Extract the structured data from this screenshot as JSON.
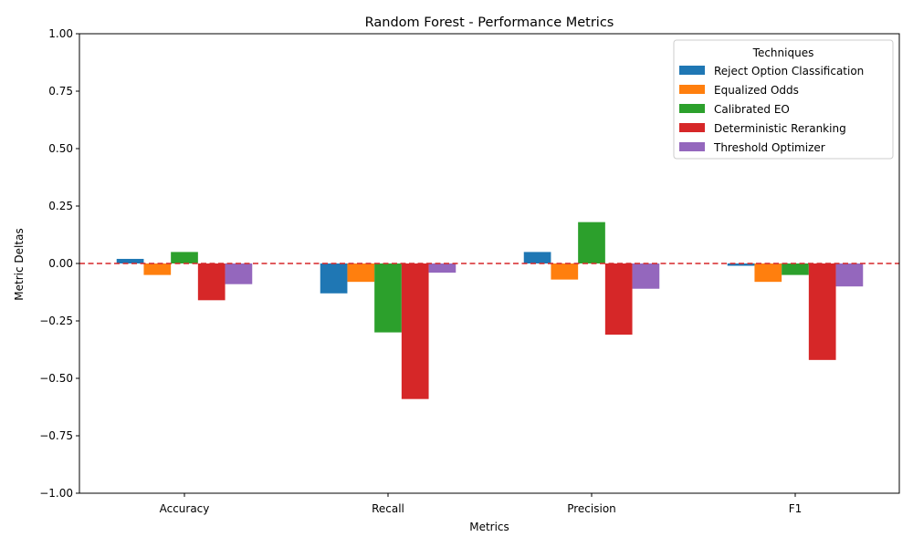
{
  "chart_data": {
    "type": "bar",
    "title": "Random Forest - Performance Metrics",
    "xlabel": "Metrics",
    "ylabel": "Metric Deltas",
    "categories": [
      "Accuracy",
      "Recall",
      "Precision",
      "F1"
    ],
    "ylim": [
      -1.0,
      1.0
    ],
    "yticks": [
      "−1.00",
      "−0.75",
      "−0.50",
      "−0.25",
      "0.00",
      "0.25",
      "0.50",
      "0.75",
      "1.00"
    ],
    "ytick_values": [
      -1.0,
      -0.75,
      -0.5,
      -0.25,
      0.0,
      0.25,
      0.5,
      0.75,
      1.0
    ],
    "reference_line": {
      "y": 0.0,
      "color": "#d62728",
      "style": "dashed"
    },
    "grid": false,
    "legend": {
      "title": "Techniques",
      "placement": "top-right"
    },
    "series": [
      {
        "name": "Reject Option Classification",
        "color": "#1f77b4",
        "values": [
          0.02,
          -0.13,
          0.05,
          -0.01
        ]
      },
      {
        "name": "Equalized Odds",
        "color": "#ff7f0e",
        "values": [
          -0.05,
          -0.08,
          -0.07,
          -0.08
        ]
      },
      {
        "name": "Calibrated EO",
        "color": "#2ca02c",
        "values": [
          0.05,
          -0.3,
          0.18,
          -0.05
        ]
      },
      {
        "name": "Deterministic Reranking",
        "color": "#d62728",
        "values": [
          -0.16,
          -0.59,
          -0.31,
          -0.42
        ]
      },
      {
        "name": "Threshold Optimizer",
        "color": "#9467bd",
        "values": [
          -0.09,
          -0.04,
          -0.11,
          -0.1
        ]
      }
    ]
  }
}
